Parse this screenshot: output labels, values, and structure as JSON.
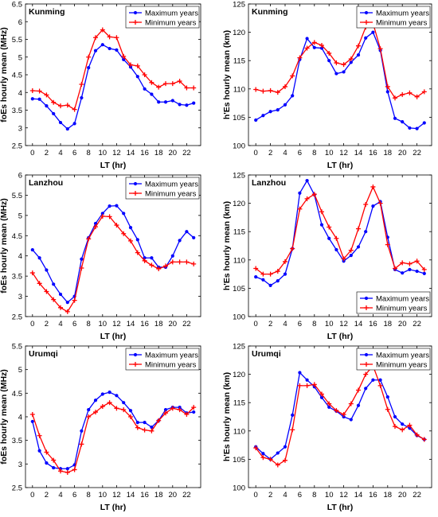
{
  "legend_labels": {
    "max": "Maximum years",
    "min": "Minimum years"
  },
  "colors": {
    "max": "#0000ff",
    "min": "#ff0000",
    "axes": "#000000",
    "grid": "#bfbfbf"
  },
  "chart_data": [
    {
      "type": "line",
      "title": "Kunming",
      "xlabel": "LT (hr)",
      "ylabel": "foEs hourly mean (MHz)",
      "xlim": [
        -1,
        24
      ],
      "ylim": [
        2.5,
        6.5
      ],
      "xticks": [
        0,
        2,
        4,
        6,
        8,
        10,
        12,
        14,
        16,
        18,
        20,
        22
      ],
      "yticks": [
        2.5,
        3,
        3.5,
        4,
        4.5,
        5,
        5.5,
        6,
        6.5
      ],
      "legend": "top-right",
      "grid": false,
      "x": [
        0,
        1,
        2,
        3,
        4,
        5,
        6,
        7,
        8,
        9,
        10,
        11,
        12,
        13,
        14,
        15,
        16,
        17,
        18,
        19,
        20,
        21,
        22,
        23
      ],
      "series": [
        {
          "name": "Maximum years",
          "values": [
            3.82,
            3.81,
            3.62,
            3.4,
            3.15,
            2.97,
            3.12,
            3.85,
            4.7,
            5.18,
            5.35,
            5.24,
            5.2,
            4.93,
            4.72,
            4.45,
            4.1,
            3.95,
            3.73,
            3.73,
            3.77,
            3.66,
            3.64,
            3.7
          ]
        },
        {
          "name": "Minimum years",
          "values": [
            4.05,
            4.04,
            3.93,
            3.72,
            3.62,
            3.64,
            3.52,
            4.23,
            5.0,
            5.55,
            5.77,
            5.57,
            5.55,
            5.02,
            4.78,
            4.75,
            4.5,
            4.28,
            4.15,
            4.25,
            4.25,
            4.32,
            4.13,
            4.13
          ]
        }
      ]
    },
    {
      "type": "line",
      "title": "Kunming",
      "xlabel": "LT (hr)",
      "ylabel": "h'Es hourly mean (km)",
      "xlim": [
        -1,
        24
      ],
      "ylim": [
        100,
        125
      ],
      "xticks": [
        0,
        2,
        4,
        6,
        8,
        10,
        12,
        14,
        16,
        18,
        20,
        22
      ],
      "yticks": [
        100,
        105,
        110,
        115,
        120,
        125
      ],
      "legend": "top-right",
      "grid": false,
      "x": [
        0,
        1,
        2,
        3,
        4,
        5,
        6,
        7,
        8,
        9,
        10,
        11,
        12,
        13,
        14,
        15,
        16,
        17,
        18,
        19,
        20,
        21,
        22,
        23
      ],
      "series": [
        {
          "name": "Maximum years",
          "values": [
            104.5,
            105.3,
            106.0,
            106.3,
            107.2,
            108.8,
            115.2,
            118.9,
            117.3,
            117.2,
            115.0,
            112.7,
            113.0,
            114.7,
            116.0,
            119.0,
            120.0,
            116.8,
            109.5,
            104.8,
            104.2,
            103.1,
            103.0,
            104.0
          ]
        },
        {
          "name": "Minimum years",
          "values": [
            109.9,
            109.6,
            109.7,
            109.4,
            110.4,
            112.3,
            115.5,
            117.2,
            118.2,
            117.7,
            116.3,
            114.6,
            114.3,
            115.3,
            117.6,
            120.9,
            121.6,
            117.1,
            110.4,
            108.4,
            109.0,
            109.3,
            108.6,
            109.5
          ]
        }
      ]
    },
    {
      "type": "line",
      "title": "Lanzhou",
      "xlabel": "LT (hr)",
      "ylabel": "foEs hourly mean (MHz)",
      "xlim": [
        -1,
        24
      ],
      "ylim": [
        2.5,
        6
      ],
      "xticks": [
        0,
        2,
        4,
        6,
        8,
        10,
        12,
        14,
        16,
        18,
        20,
        22
      ],
      "yticks": [
        2.5,
        3,
        3.5,
        4,
        4.5,
        5,
        5.5,
        6
      ],
      "legend": "top-right",
      "grid": false,
      "x": [
        0,
        1,
        2,
        3,
        4,
        5,
        6,
        7,
        8,
        9,
        10,
        11,
        12,
        13,
        14,
        15,
        16,
        17,
        18,
        19,
        20,
        21,
        22,
        23
      ],
      "series": [
        {
          "name": "Maximum years",
          "values": [
            4.15,
            3.95,
            3.65,
            3.3,
            3.05,
            2.85,
            3.0,
            3.92,
            4.45,
            4.8,
            5.05,
            5.23,
            5.24,
            5.05,
            4.7,
            4.4,
            3.95,
            3.95,
            3.72,
            3.72,
            4.0,
            4.38,
            4.6,
            4.45
          ]
        },
        {
          "name": "Minimum years",
          "values": [
            3.58,
            3.32,
            3.12,
            2.92,
            2.72,
            2.62,
            2.9,
            3.7,
            4.42,
            4.72,
            4.98,
            4.97,
            4.76,
            4.55,
            4.37,
            4.08,
            3.88,
            3.77,
            3.68,
            3.75,
            3.85,
            3.85,
            3.85,
            3.8
          ]
        }
      ]
    },
    {
      "type": "line",
      "title": "Lanzhou",
      "xlabel": "LT (hr)",
      "ylabel": "h'Es hourly mean (km)",
      "xlim": [
        -1,
        24
      ],
      "ylim": [
        100,
        125
      ],
      "xticks": [
        0,
        2,
        4,
        6,
        8,
        10,
        12,
        14,
        16,
        18,
        20,
        22
      ],
      "yticks": [
        100,
        105,
        110,
        115,
        120,
        125
      ],
      "legend": "bottom-right",
      "grid": false,
      "x": [
        0,
        1,
        2,
        3,
        4,
        5,
        6,
        7,
        8,
        9,
        10,
        11,
        12,
        13,
        14,
        15,
        16,
        17,
        18,
        19,
        20,
        21,
        22,
        23
      ],
      "series": [
        {
          "name": "Maximum years",
          "values": [
            107.0,
            106.5,
            105.5,
            106.3,
            107.5,
            112.0,
            121.8,
            124.0,
            121.5,
            116.2,
            113.8,
            111.8,
            109.8,
            110.8,
            112.3,
            115.0,
            119.5,
            120.3,
            114.0,
            108.3,
            107.7,
            108.3,
            108.0,
            107.6
          ]
        },
        {
          "name": "Minimum years",
          "values": [
            108.5,
            107.5,
            107.5,
            108.0,
            109.7,
            112.0,
            119.0,
            120.8,
            121.6,
            118.5,
            115.8,
            113.8,
            110.2,
            111.7,
            115.5,
            119.8,
            122.9,
            120.0,
            112.7,
            108.5,
            109.5,
            109.3,
            109.8,
            108.3
          ]
        }
      ]
    },
    {
      "type": "line",
      "title": "Urumqi",
      "xlabel": "LT (hr)",
      "ylabel": "foEs hourly mean (MHz)",
      "xlim": [
        -1,
        24
      ],
      "ylim": [
        2.5,
        5.5
      ],
      "xticks": [
        0,
        2,
        4,
        6,
        8,
        10,
        12,
        14,
        16,
        18,
        20,
        22
      ],
      "yticks": [
        2.5,
        3,
        3.5,
        4,
        4.5,
        5,
        5.5
      ],
      "legend": "top-right",
      "grid": false,
      "x": [
        0,
        1,
        2,
        3,
        4,
        5,
        6,
        7,
        8,
        9,
        10,
        11,
        12,
        13,
        14,
        15,
        16,
        17,
        18,
        19,
        20,
        21,
        22,
        23
      ],
      "series": [
        {
          "name": "Maximum years",
          "values": [
            3.9,
            3.28,
            3.02,
            2.92,
            2.9,
            2.9,
            2.98,
            3.7,
            4.15,
            4.35,
            4.48,
            4.52,
            4.45,
            4.3,
            4.13,
            3.88,
            3.88,
            3.78,
            3.92,
            4.15,
            4.2,
            4.2,
            4.08,
            4.1
          ]
        },
        {
          "name": "Minimum years",
          "values": [
            4.05,
            3.6,
            3.25,
            3.08,
            2.85,
            2.82,
            2.88,
            3.42,
            4.0,
            4.1,
            4.22,
            4.3,
            4.18,
            4.15,
            4.0,
            3.77,
            3.72,
            3.7,
            3.92,
            4.08,
            4.18,
            4.15,
            4.05,
            4.2
          ]
        }
      ]
    },
    {
      "type": "line",
      "title": "Urumqi",
      "xlabel": "LT (hr)",
      "ylabel": "h'Es hourly mean (km)",
      "xlim": [
        -1,
        24
      ],
      "ylim": [
        100,
        125
      ],
      "xticks": [
        0,
        2,
        4,
        6,
        8,
        10,
        12,
        14,
        16,
        18,
        20,
        22
      ],
      "yticks": [
        100,
        105,
        110,
        115,
        120,
        125
      ],
      "legend": "top-right",
      "grid": false,
      "x": [
        0,
        1,
        2,
        3,
        4,
        5,
        6,
        7,
        8,
        9,
        10,
        11,
        12,
        13,
        14,
        15,
        16,
        17,
        18,
        19,
        20,
        21,
        22,
        23
      ],
      "series": [
        {
          "name": "Maximum years",
          "values": [
            107.2,
            106.0,
            105.0,
            106.1,
            107.2,
            112.8,
            120.3,
            119.0,
            117.8,
            115.9,
            114.2,
            113.5,
            112.5,
            112.0,
            114.5,
            117.5,
            119.0,
            119.0,
            116.0,
            112.5,
            111.2,
            110.5,
            109.2,
            108.5
          ]
        },
        {
          "name": "Minimum years",
          "values": [
            107.0,
            105.3,
            105.0,
            104.0,
            104.8,
            110.2,
            118.0,
            118.0,
            118.2,
            116.5,
            114.8,
            113.6,
            112.9,
            114.8,
            117.2,
            120.0,
            121.5,
            118.0,
            113.8,
            110.8,
            110.2,
            111.0,
            109.3,
            108.5
          ]
        }
      ]
    }
  ]
}
